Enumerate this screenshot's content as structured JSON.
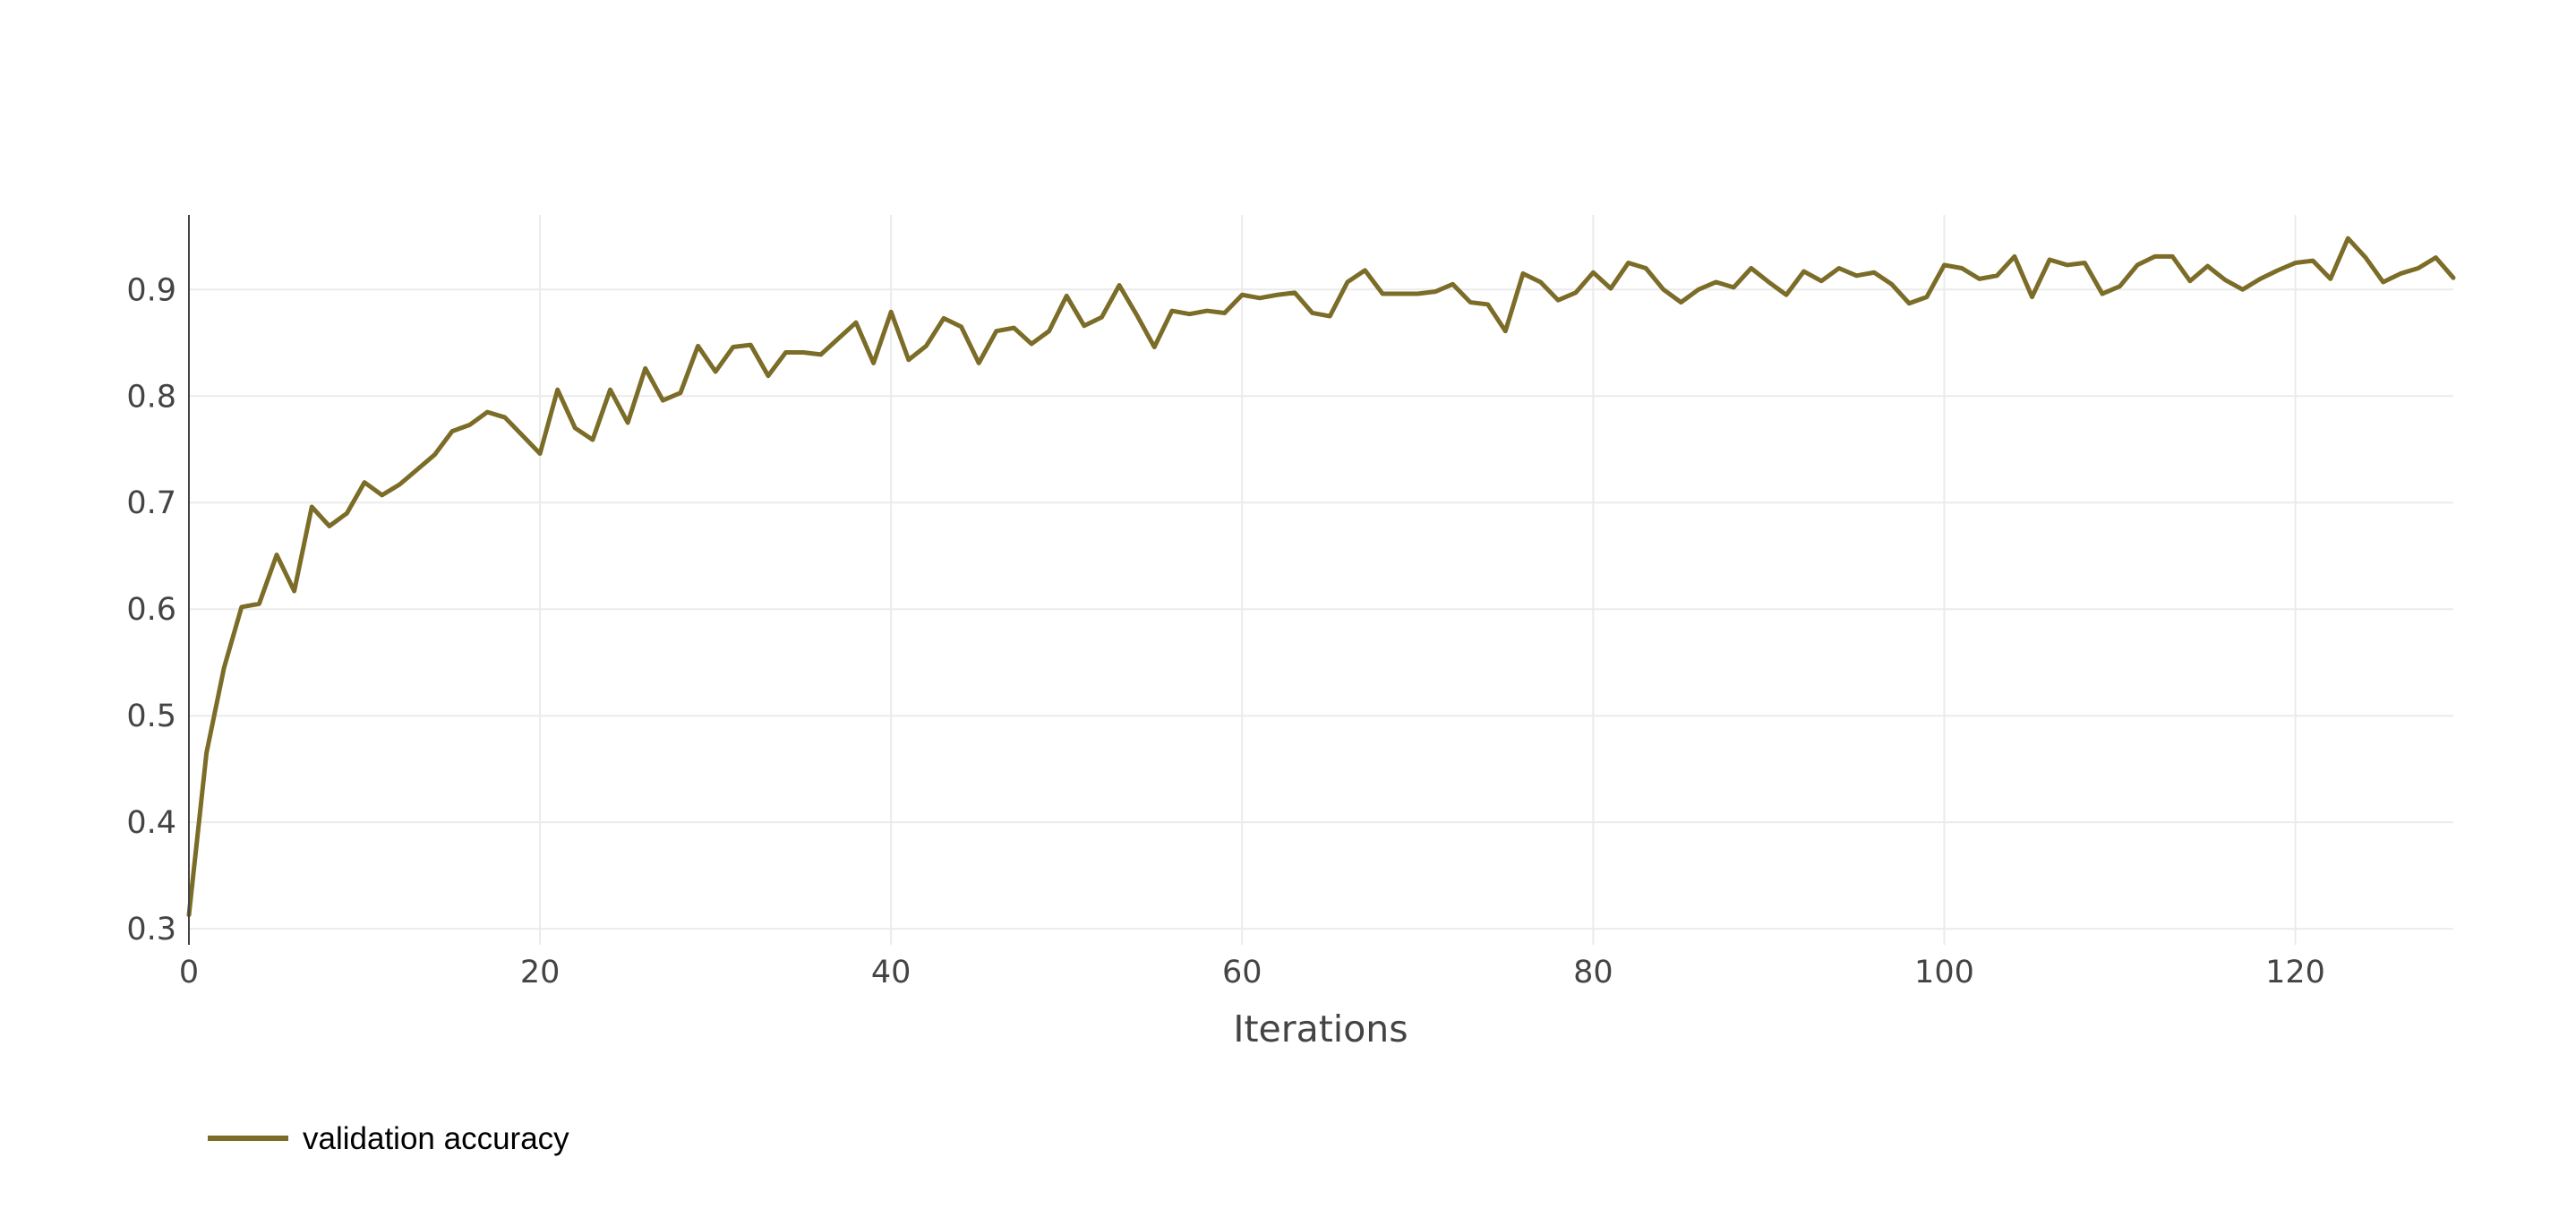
{
  "chart_data": {
    "type": "line",
    "xlabel": "Iterations",
    "ylabel": "",
    "xlim": [
      0,
      129
    ],
    "ylim": [
      0.285,
      0.97
    ],
    "x_ticks": [
      0,
      20,
      40,
      60,
      80,
      100,
      120
    ],
    "y_ticks": [
      0.3,
      0.4,
      0.5,
      0.6,
      0.7,
      0.8,
      0.9
    ],
    "grid": true,
    "legend_position": "bottom-left",
    "series": [
      {
        "name": "validation accuracy",
        "color": "#7b6c28",
        "values": [
          0.313,
          0.465,
          0.545,
          0.602,
          0.605,
          0.651,
          0.617,
          0.696,
          0.678,
          0.69,
          0.719,
          0.707,
          0.717,
          0.731,
          0.745,
          0.767,
          0.773,
          0.785,
          0.78,
          0.763,
          0.746,
          0.806,
          0.77,
          0.759,
          0.806,
          0.775,
          0.826,
          0.796,
          0.803,
          0.847,
          0.823,
          0.846,
          0.848,
          0.819,
          0.841,
          0.841,
          0.839,
          0.854,
          0.869,
          0.831,
          0.879,
          0.834,
          0.847,
          0.873,
          0.865,
          0.831,
          0.861,
          0.864,
          0.849,
          0.861,
          0.894,
          0.866,
          0.874,
          0.904,
          0.876,
          0.846,
          0.88,
          0.877,
          0.88,
          0.878,
          0.895,
          0.892,
          0.895,
          0.897,
          0.878,
          0.875,
          0.907,
          0.918,
          0.896,
          0.896,
          0.896,
          0.898,
          0.905,
          0.888,
          0.886,
          0.861,
          0.915,
          0.907,
          0.89,
          0.897,
          0.916,
          0.901,
          0.925,
          0.92,
          0.9,
          0.888,
          0.9,
          0.907,
          0.902,
          0.92,
          0.907,
          0.895,
          0.917,
          0.908,
          0.92,
          0.913,
          0.916,
          0.905,
          0.887,
          0.893,
          0.923,
          0.92,
          0.91,
          0.913,
          0.931,
          0.893,
          0.928,
          0.923,
          0.925,
          0.896,
          0.903,
          0.923,
          0.931,
          0.931,
          0.908,
          0.922,
          0.909,
          0.9,
          0.91,
          0.918,
          0.925,
          0.927,
          0.91,
          0.948,
          0.93,
          0.907,
          0.915,
          0.92,
          0.93,
          0.911
        ]
      }
    ]
  }
}
